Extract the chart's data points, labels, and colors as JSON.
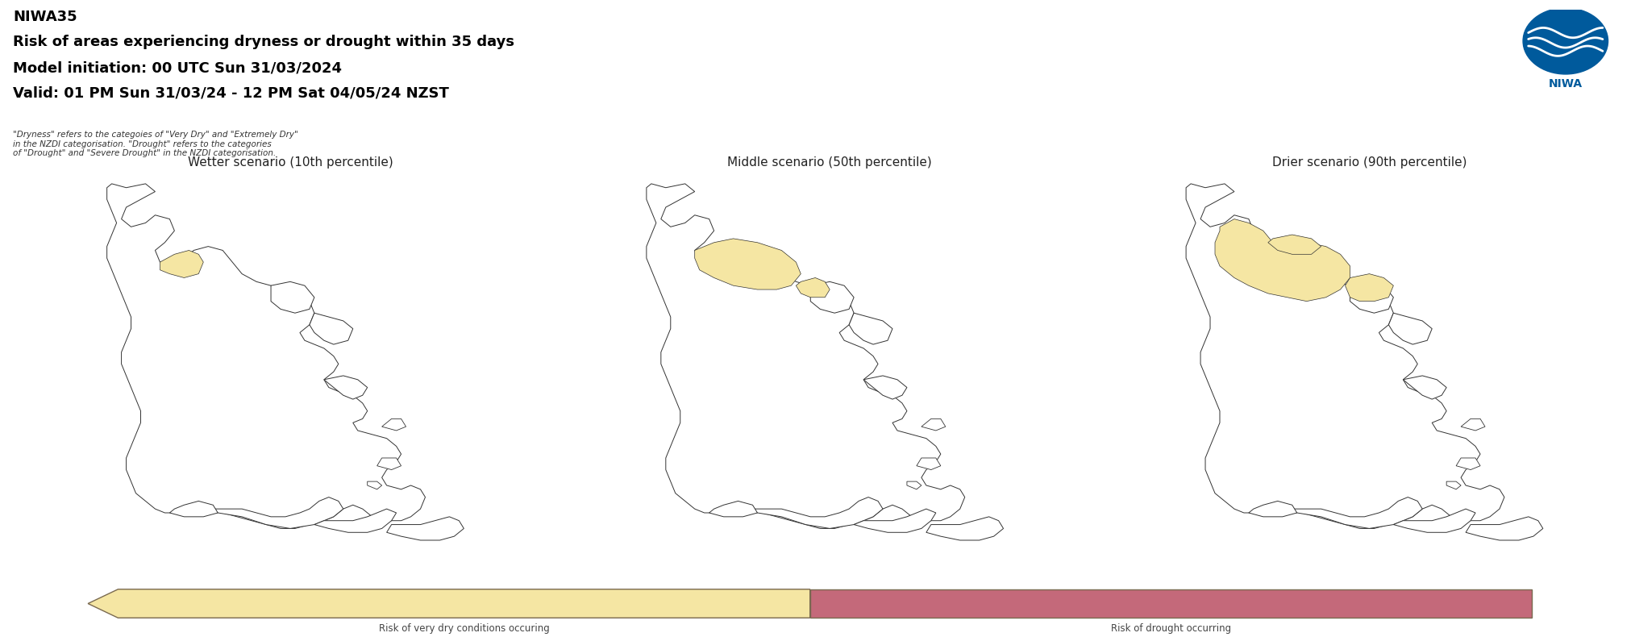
{
  "title_line1": "NIWA35",
  "title_line2": "Risk of areas experiencing dryness or drought within 35 days",
  "title_line3": "Model initiation: 00 UTC Sun 31/03/2024",
  "title_line4": "Valid: 01 PM Sun 31/03/24 - 12 PM Sat 04/05/24 NZST",
  "footnote": "\"Dryness\" refers to the categoies of \"Very Dry\" and \"Extremely Dry\"\nin the NZDI categorisation. \"Drought\" refers to the categories\nof \"Drought\" and \"Severe Drought\" in the NZDI categorisation.",
  "panel_titles": [
    "Wetter scenario (10th percentile)",
    "Middle scenario (50th percentile)",
    "Drier scenario (90th percentile)"
  ],
  "panel_bg": "#dce8f0",
  "legend_yellow": "#f5e6a3",
  "legend_red": "#c4697a",
  "legend_outline": "#7a6a50",
  "legend_label_yellow": "Risk of very dry conditions occuring",
  "legend_label_red": "Risk of drought occurring",
  "map_outline_color": "#333333",
  "map_fill_color": "#ffffff",
  "map_fill_yellow": "#f5e6a3",
  "map_fill_red": "#c4697a",
  "background_color": "#ffffff",
  "title_fontsize": 13,
  "panel_title_fontsize": 11
}
